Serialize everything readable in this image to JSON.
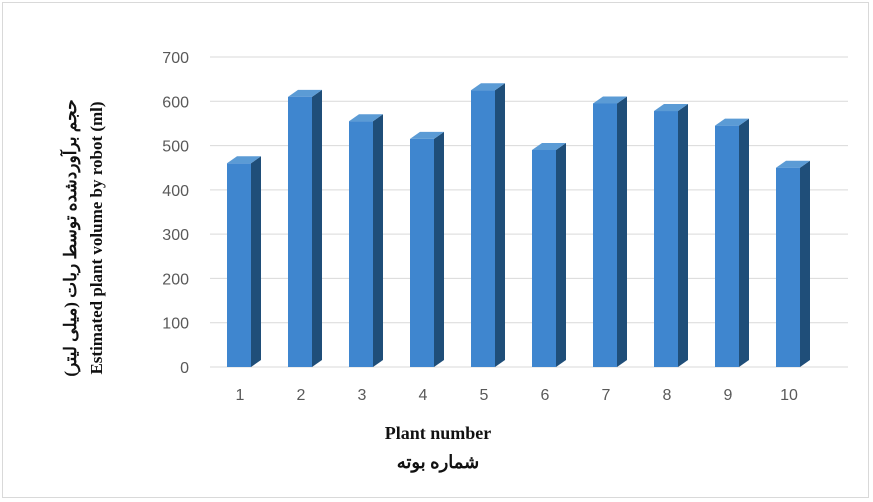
{
  "chart_data": {
    "type": "bar",
    "categories": [
      "1",
      "2",
      "3",
      "4",
      "5",
      "6",
      "7",
      "8",
      "9",
      "10"
    ],
    "values": [
      460,
      610,
      555,
      515,
      625,
      490,
      595,
      578,
      545,
      450
    ],
    "title": "",
    "xlabel": "Plant number",
    "xlabel_fa": "شماره بوته",
    "ylabel": "Estimated plant volume by robot (ml)",
    "ylabel_fa": "حجم برآوردشده توسط ربات (میلی لیتر)",
    "ylim": [
      0,
      700
    ],
    "yticks": [
      "0",
      "100",
      "200",
      "300",
      "400",
      "500",
      "600",
      "700"
    ],
    "grid": true,
    "legend": "none",
    "colors": {
      "bar_front": "#3f86cf",
      "bar_side": "#1f4e79",
      "bar_top": "#5b9bd5",
      "grid": "#d9d9d9"
    }
  }
}
